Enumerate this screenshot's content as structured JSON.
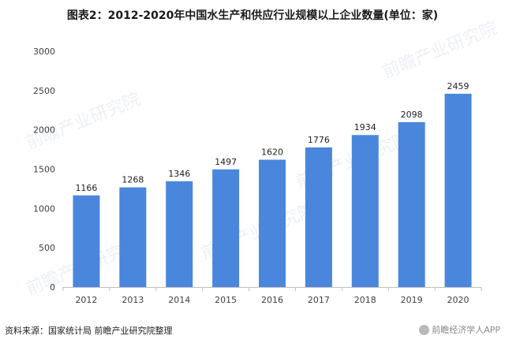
{
  "title": "图表2：2012-2020年中国水生产和供应行业规模以上企业数量(单位：家)",
  "source": "资料来源：国家统计局 前瞻产业研究院整理",
  "corner_mark": "前瞻经济学人APP",
  "watermark": "前瞻产业研究院",
  "colors": {
    "bar": "#4a86dc",
    "axis": "#bfbfbf",
    "text": "#404040"
  },
  "chart_data": {
    "type": "bar",
    "title": "图表2：2012-2020年中国水生产和供应行业规模以上企业数量(单位：家)",
    "categories": [
      "2012",
      "2013",
      "2014",
      "2015",
      "2016",
      "2017",
      "2018",
      "2019",
      "2020"
    ],
    "values": [
      1166,
      1268,
      1346,
      1497,
      1620,
      1776,
      1934,
      2098,
      2459
    ],
    "ylim": [
      0,
      3000
    ],
    "yticks": [
      0,
      500,
      1000,
      1500,
      2000,
      2500,
      3000
    ],
    "xlabel": "",
    "ylabel": "",
    "grid": false,
    "data_labels": true
  }
}
